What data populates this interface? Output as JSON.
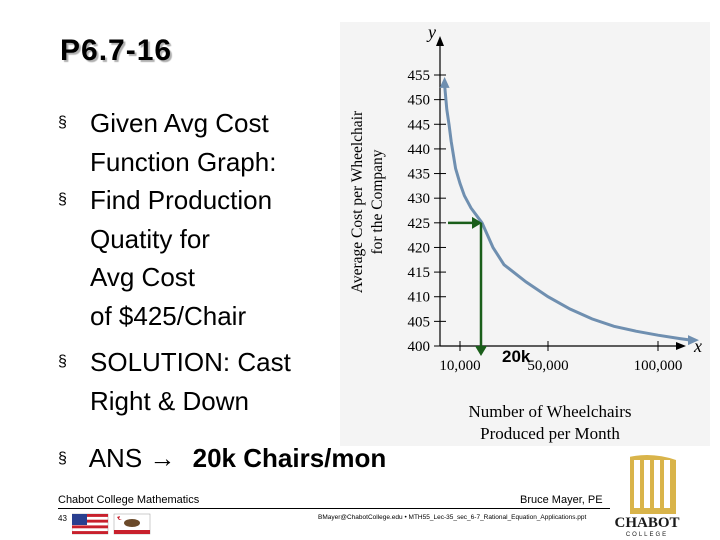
{
  "slide": {
    "title": "P6.7-16",
    "bullets": [
      {
        "marker": "§",
        "lines": [
          "Given Avg Cost",
          "Function Graph:"
        ]
      },
      {
        "marker": "§",
        "lines": [
          "Find Production",
          "Quatity for",
          "Avg Cost",
          "of $425/Chair"
        ]
      },
      {
        "marker": "§",
        "lines": [
          "SOLUTION: Cast",
          "Right & Down"
        ]
      }
    ],
    "answer": {
      "marker": "§",
      "prefix": "ANS →",
      "value": "20k Chairs/mon"
    }
  },
  "footer": {
    "left": "Chabot College Mathematics",
    "right": "Bruce Mayer, PE",
    "page": "43",
    "email": "BMayer@ChabotCollege.edu • MTH55_Lec-35_sec_6-7_Rational_Equation_Applications.ppt"
  },
  "logo": {
    "text": "CHABOT",
    "subtext": "COLLEGE"
  },
  "chart_data": {
    "type": "line",
    "x_axis_symbol": "x",
    "y_axis_symbol": "y",
    "xlabel": [
      "Number of Wheelchairs",
      "Produced per Month"
    ],
    "ylabel": [
      "Average Cost per Wheelchair",
      "for the Company"
    ],
    "xlim": [
      0,
      120000
    ],
    "ylim": [
      398,
      460
    ],
    "x_ticks": [
      10000,
      50000,
      100000
    ],
    "x_tick_labels": [
      "10,000",
      "50,000",
      "100,000"
    ],
    "y_ticks": [
      400,
      405,
      410,
      415,
      420,
      425,
      430,
      435,
      440,
      445,
      450,
      455
    ],
    "y_tick_labels": [
      "400",
      "405",
      "410",
      "415",
      "420",
      "425",
      "430",
      "435",
      "440",
      "445",
      "450",
      "455"
    ],
    "series": [
      {
        "points": [
          [
            3000,
            453
          ],
          [
            4000,
            448
          ],
          [
            5000,
            445
          ],
          [
            6000,
            441.5
          ],
          [
            8000,
            436
          ],
          [
            10000,
            433
          ],
          [
            12000,
            430.5
          ],
          [
            15000,
            428
          ],
          [
            20000,
            425
          ],
          [
            25000,
            420
          ],
          [
            30000,
            416.5
          ],
          [
            40000,
            413
          ],
          [
            50000,
            410
          ],
          [
            60000,
            407.5
          ],
          [
            70000,
            405.5
          ],
          [
            80000,
            404
          ],
          [
            90000,
            403
          ],
          [
            100000,
            402.2
          ],
          [
            110000,
            401.5
          ],
          [
            115000,
            401.2
          ]
        ]
      }
    ],
    "annotation": {
      "label": "20k",
      "x": 20000,
      "y": 425
    },
    "colors": {
      "curve": "#6f8fb0",
      "annotation": "#1a5e1a"
    }
  }
}
